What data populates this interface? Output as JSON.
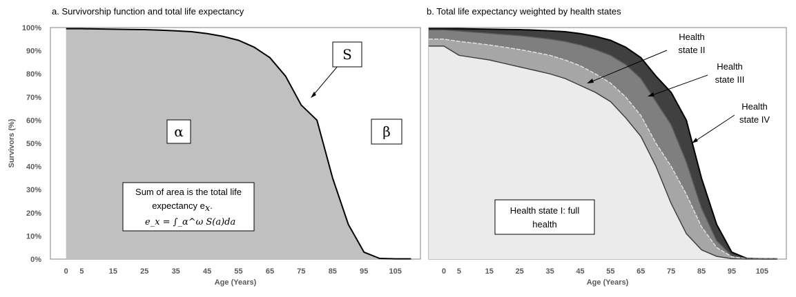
{
  "chart_data": [
    {
      "type": "area",
      "title": "a. Survivorship  function and total life expectancy",
      "xlabel": "Age (Years)",
      "ylabel": "Survivors (%)",
      "xlim": [
        -5,
        113
      ],
      "ylim": [
        0,
        100
      ],
      "x_ticks": [
        0,
        5,
        15,
        25,
        35,
        45,
        55,
        65,
        75,
        85,
        95,
        105
      ],
      "y_ticks": [
        "0%",
        "10%",
        "20%",
        "30%",
        "40%",
        "50%",
        "60%",
        "70%",
        "80%",
        "90%",
        "100%"
      ],
      "series": [
        {
          "x": [
            0,
            5,
            10,
            15,
            20,
            25,
            30,
            35,
            40,
            45,
            50,
            55,
            60,
            65,
            70,
            75,
            80,
            85,
            90,
            95,
            100,
            105,
            110
          ],
          "values": [
            99.5,
            99.5,
            99.4,
            99.3,
            99.2,
            99.1,
            98.9,
            98.6,
            98.2,
            97.4,
            96.2,
            94.5,
            91.5,
            87,
            79,
            66.5,
            60,
            35,
            15,
            3,
            0.3,
            0.1,
            0.1
          ]
        }
      ],
      "annotations": {
        "curve_label": "S",
        "area_left": "α",
        "area_right": "β",
        "textbox_line1": "Sum of area is the total life",
        "textbox_line2": "expectancy e",
        "textbox_sub": "x",
        "textbox_formula": "e_x = ∫_α^ω S(a)da"
      }
    },
    {
      "type": "area",
      "title": "b. Total life expectancy weighted by health states",
      "xlabel": "Age (Years)",
      "xlim": [
        -5,
        113
      ],
      "ylim": [
        0,
        100
      ],
      "x_ticks": [
        0,
        5,
        15,
        25,
        35,
        45,
        55,
        65,
        75,
        85,
        95,
        105
      ],
      "x": [
        0,
        5,
        10,
        15,
        20,
        25,
        30,
        35,
        40,
        45,
        50,
        55,
        60,
        65,
        70,
        75,
        80,
        85,
        90,
        95,
        100,
        105,
        110
      ],
      "series": [
        {
          "name": "Health state IV",
          "values": [
            99.5,
            99.5,
            99.4,
            99.3,
            99.2,
            99.1,
            98.9,
            98.6,
            98.2,
            97.4,
            96.2,
            94.5,
            91.5,
            87,
            79,
            72,
            60,
            35,
            15,
            3,
            0.3,
            0.1,
            0.1
          ]
        },
        {
          "name": "Health state III",
          "values": [
            99,
            98.5,
            98,
            97.5,
            97,
            96.5,
            95.8,
            95,
            94,
            92.5,
            90.5,
            88,
            84,
            78,
            68,
            58,
            42,
            22,
            8,
            1.5,
            0.2,
            0.1,
            0.1
          ]
        },
        {
          "name": "Health state II",
          "values": [
            95,
            94,
            93.3,
            92.5,
            91.5,
            90.5,
            89.3,
            88,
            86,
            83.5,
            80,
            76,
            70,
            62,
            50,
            40,
            28,
            14,
            5,
            1,
            0.1,
            0.1,
            0.1
          ]
        },
        {
          "name": "Health state I: full health",
          "values": [
            92,
            88,
            87,
            86,
            84.5,
            83,
            81.5,
            80,
            78,
            75,
            72,
            68,
            61,
            53,
            40,
            24,
            11,
            4,
            1.2,
            0.2,
            0,
            0,
            0
          ]
        }
      ],
      "colors": [
        "#404040",
        "#7f7f7f",
        "#a6a6a6",
        "#ebebeb"
      ],
      "annotations": {
        "state2_line1": "Health",
        "state2_line2": "state II",
        "state3_line1": "Health",
        "state3_line2": "state III",
        "state4_line1": "Health",
        "state4_line2": "state IV",
        "box_line1": "Health state I: full",
        "box_line2": "health"
      }
    }
  ]
}
